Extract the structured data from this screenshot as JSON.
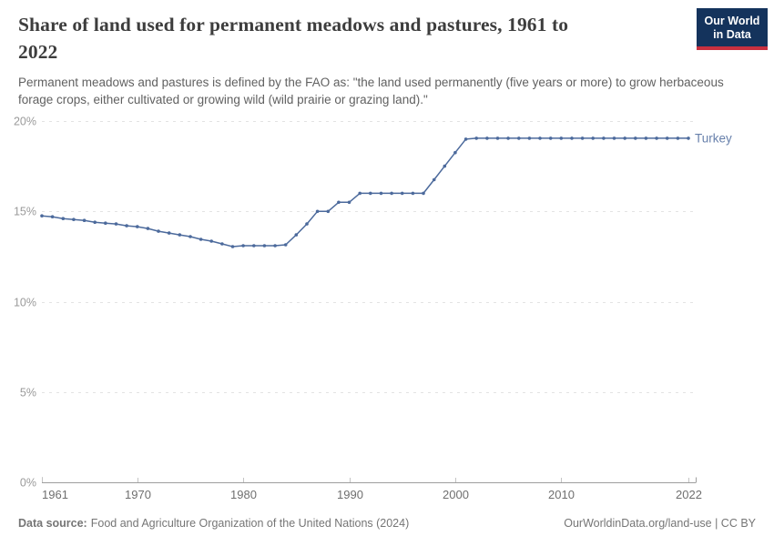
{
  "header": {
    "title_lines": {
      "0": "Share of land used for permanent meadows and pastures, 1961 to",
      "1": "2022"
    },
    "subtitle": "Permanent meadows and pastures is defined by the FAO as: \"the land used permanently (five years or more) to grow herbaceous forage crops, either cultivated or growing wild (wild prairie or grazing land).\"",
    "logo_line1": "Our World",
    "logo_line2": "in Data"
  },
  "chart_data": {
    "type": "line",
    "title": "Share of land used for permanent meadows and pastures, 1961 to 2022",
    "xlabel": "",
    "ylabel": "",
    "xlim": [
      1961,
      2022
    ],
    "ylim": [
      0,
      20
    ],
    "x_ticks": [
      1961,
      1970,
      1980,
      1990,
      2000,
      2010,
      2022
    ],
    "y_ticks": [
      0,
      5,
      10,
      15,
      20
    ],
    "y_tick_suffix": "%",
    "grid": "horizontal-dashed",
    "legend_position": "line-end-label",
    "series": [
      {
        "name": "Turkey",
        "color": "#4c6a9c",
        "x": [
          1961,
          1962,
          1963,
          1964,
          1965,
          1966,
          1967,
          1968,
          1969,
          1970,
          1971,
          1972,
          1973,
          1974,
          1975,
          1976,
          1977,
          1978,
          1979,
          1980,
          1981,
          1982,
          1983,
          1984,
          1985,
          1986,
          1987,
          1988,
          1989,
          1990,
          1991,
          1992,
          1993,
          1994,
          1995,
          1996,
          1997,
          1998,
          1999,
          2000,
          2001,
          2002,
          2003,
          2004,
          2005,
          2006,
          2007,
          2008,
          2009,
          2010,
          2011,
          2012,
          2013,
          2014,
          2015,
          2016,
          2017,
          2018,
          2019,
          2020,
          2021,
          2022
        ],
        "values": [
          14.75,
          14.7,
          14.6,
          14.55,
          14.5,
          14.4,
          14.35,
          14.3,
          14.2,
          14.15,
          14.05,
          13.9,
          13.8,
          13.7,
          13.6,
          13.45,
          13.35,
          13.2,
          13.05,
          13.1,
          13.1,
          13.1,
          13.1,
          13.15,
          13.7,
          14.3,
          15.0,
          15.0,
          15.5,
          15.5,
          16.0,
          16.0,
          16.0,
          16.0,
          16.0,
          16.0,
          16.0,
          16.75,
          17.5,
          18.25,
          19.0,
          19.05,
          19.05,
          19.05,
          19.05,
          19.05,
          19.05,
          19.05,
          19.05,
          19.05,
          19.05,
          19.05,
          19.05,
          19.05,
          19.05,
          19.05,
          19.05,
          19.05,
          19.05,
          19.05,
          19.05,
          19.05
        ]
      }
    ]
  },
  "footer": {
    "source_label": "Data source:",
    "source_text": "Food and Agriculture Organization of the United Nations (2024)",
    "attribution": "OurWorldinData.org/land-use | CC BY"
  },
  "colors": {
    "line": "#4c6a9c",
    "grid": "#e3e3e3",
    "axis": "#9e9e9e",
    "tickMark": "#c4c4c4",
    "tickY": "#9a9a9a",
    "tickX": "#6f6f6f"
  }
}
